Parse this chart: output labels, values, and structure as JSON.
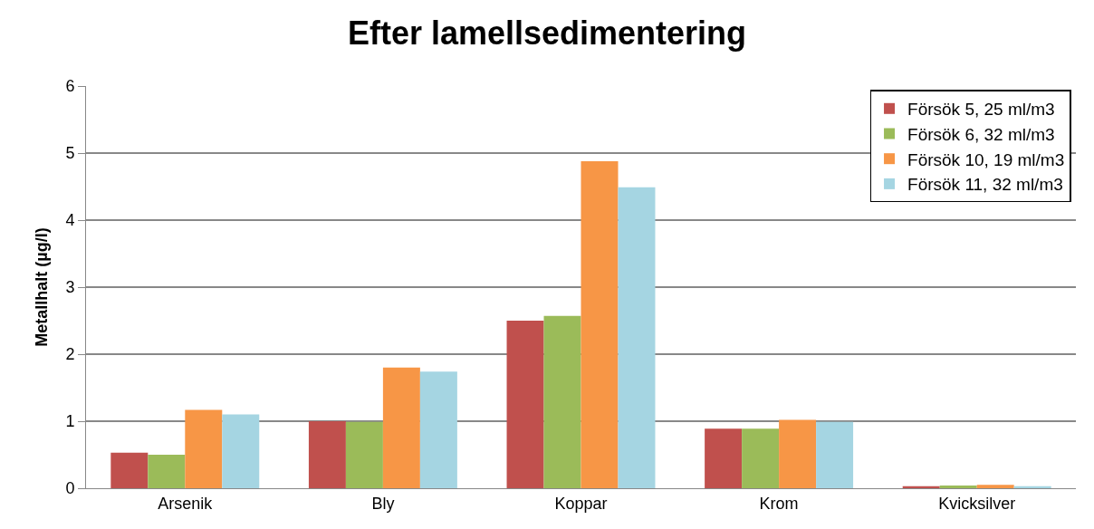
{
  "chart_data": {
    "type": "bar",
    "title": "Efter lamellsedimentering",
    "ylabel": "Metallhalt (µg/l)",
    "categories": [
      "Arsenik",
      "Bly",
      "Koppar",
      "Krom",
      "Kvicksilver"
    ],
    "series": [
      {
        "name": "Försök 5, 25 ml/m3",
        "color": "#c0504d",
        "values": [
          0.53,
          1.0,
          2.5,
          0.89,
          0.03
        ]
      },
      {
        "name": "Försök 6, 32 ml/m3",
        "color": "#9bbb59",
        "values": [
          0.5,
          0.99,
          2.57,
          0.89,
          0.04
        ]
      },
      {
        "name": "Försök 10, 19 ml/m3",
        "color": "#f79646",
        "values": [
          1.17,
          1.8,
          4.88,
          1.02,
          0.05
        ]
      },
      {
        "name": "Försök 11, 32 ml/m3",
        "color": "#a5d5e2",
        "values": [
          1.1,
          1.74,
          4.49,
          0.99,
          0.03
        ]
      }
    ],
    "ylim": [
      0,
      6
    ],
    "yticks": [
      0,
      1,
      2,
      3,
      4,
      5,
      6
    ],
    "grid": "y",
    "legend": "top right"
  }
}
